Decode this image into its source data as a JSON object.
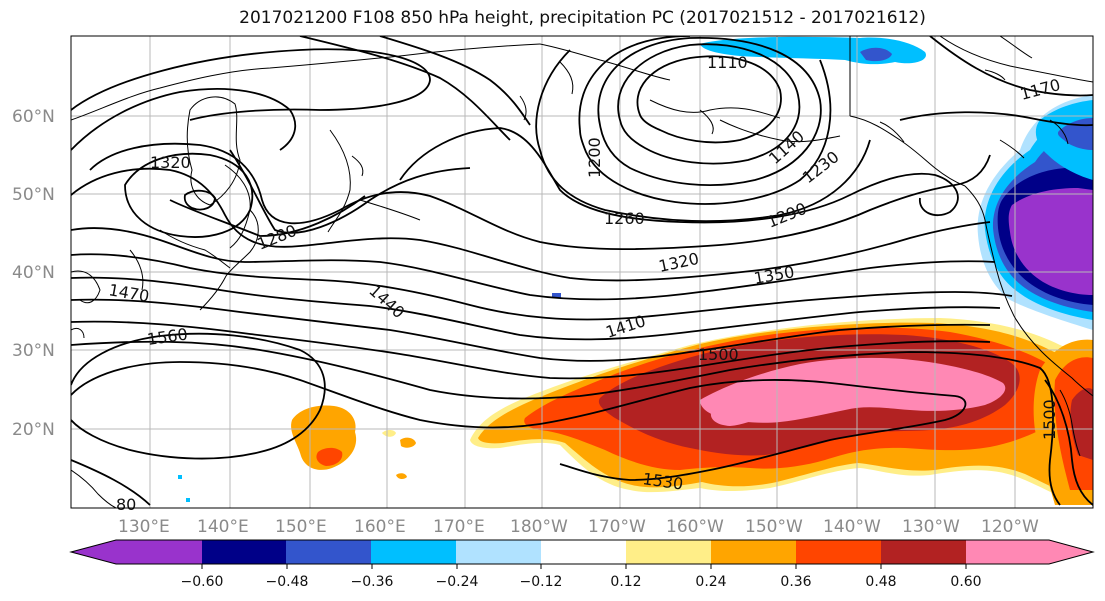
{
  "title": "2017021200 F108 850 hPa height, precipitation PC (2017021512 - 2017021612)",
  "map": {
    "lat_ticks": [
      "60°N",
      "50°N",
      "40°N",
      "30°N",
      "20°N"
    ],
    "lon_ticks": [
      "130°E",
      "140°E",
      "150°E",
      "160°E",
      "170°E",
      "180°W",
      "170°W",
      "160°W",
      "150°W",
      "140°W",
      "130°W",
      "120°W"
    ],
    "contour_labels": [
      "1110",
      "1140",
      "1170",
      "1200",
      "1230",
      "1260",
      "1280",
      "1290",
      "1320",
      "1320",
      "1350",
      "1410",
      "1440",
      "1470",
      "1500",
      "1500",
      "1530",
      "1560"
    ],
    "partial_label": "80"
  },
  "colorbar": {
    "colors": [
      "#9933cc",
      "#000088",
      "#3355cc",
      "#00bfff",
      "#b0e2ff",
      "#ffffff",
      "#ffee88",
      "#ffa500",
      "#ff4500",
      "#b22222",
      "#ff88b4",
      "#ff88b4"
    ],
    "tick_labels": [
      "−0.60",
      "−0.48",
      "−0.36",
      "−0.24",
      "−0.12",
      "0.12",
      "0.24",
      "0.36",
      "0.48",
      "0.60"
    ]
  }
}
